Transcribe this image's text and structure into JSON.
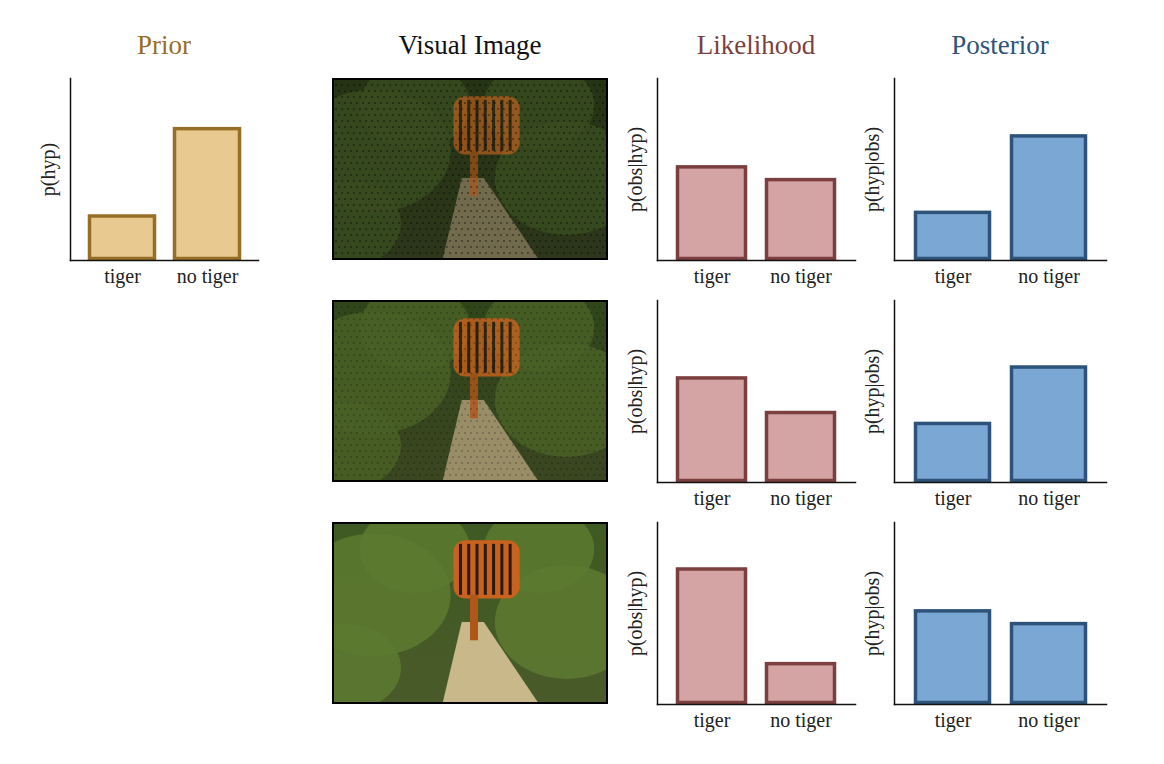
{
  "chart_data": [
    {
      "type": "bar",
      "title": "Prior",
      "ylabel": "p(hyp)",
      "categories": [
        "tiger",
        "no tiger"
      ],
      "values": [
        0.25,
        0.73
      ],
      "color": "#e8c990",
      "ylim": [
        0,
        1
      ],
      "tick_labels": "x"
    },
    {
      "type": "image",
      "title": "Visual Image"
    },
    {
      "type": "bar",
      "title": "Likelihood",
      "ylabel": "p(obs|hyp)",
      "categories": [
        "tiger",
        "no tiger"
      ],
      "values": [
        0.52,
        0.45
      ],
      "color": "#d4a3a3",
      "ylim": [
        0,
        1
      ],
      "tick_labels": "x"
    },
    {
      "type": "bar",
      "title": "Posterior",
      "ylabel": "p(hyp|obs)",
      "categories": [
        "tiger",
        "no tiger"
      ],
      "values": [
        0.27,
        0.69
      ],
      "color": "#7ba7d4",
      "ylim": [
        0,
        1
      ],
      "tick_labels": "x"
    },
    {
      "type": "image"
    },
    {
      "type": "bar",
      "ylabel": "p(obs|hyp)",
      "categories": [
        "tiger",
        "no tiger"
      ],
      "values": [
        0.58,
        0.39
      ],
      "color": "#d4a3a3",
      "ylim": [
        0,
        1
      ],
      "tick_labels": "x"
    },
    {
      "type": "bar",
      "ylabel": "p(hyp|obs)",
      "categories": [
        "tiger",
        "no tiger"
      ],
      "values": [
        0.33,
        0.64
      ],
      "color": "#7ba7d4",
      "ylim": [
        0,
        1
      ],
      "tick_labels": "x"
    },
    {
      "type": "image"
    },
    {
      "type": "bar",
      "ylabel": "p(obs|hyp)",
      "categories": [
        "tiger",
        "no tiger"
      ],
      "values": [
        0.75,
        0.23
      ],
      "color": "#d4a3a3",
      "ylim": [
        0,
        1
      ],
      "tick_labels": "x"
    },
    {
      "type": "bar",
      "ylabel": "p(hyp|obs)",
      "categories": [
        "tiger",
        "no tiger"
      ],
      "values": [
        0.52,
        0.45
      ],
      "color": "#7ba7d4",
      "ylim": [
        0,
        1
      ],
      "tick_labels": "x"
    }
  ]
}
